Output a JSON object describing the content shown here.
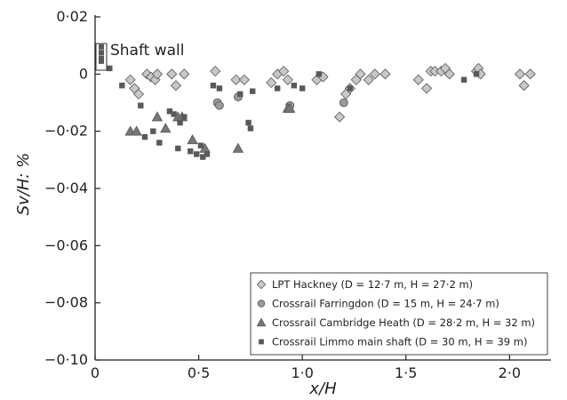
{
  "chart_data": {
    "type": "scatter",
    "xlabel": "x/H",
    "ylabel": "Sv/H: %",
    "xlim": [
      0,
      2.2
    ],
    "ylim": [
      -0.1,
      0.02
    ],
    "xticks": [
      "0",
      "0·5",
      "1·0",
      "1·5",
      "2·0"
    ],
    "yticks": [
      "0·02",
      "0",
      "−0·02",
      "−0·04",
      "−0·06",
      "−0·08",
      "−0·10"
    ],
    "annotation": "Shaft wall",
    "legend_position": "bottom-right",
    "series": [
      {
        "name": "LPT Hackney (D = 12·7 m, H = 27·2 m)",
        "marker": "diamond",
        "color": "#c8c8c8",
        "points": [
          [
            0.17,
            -0.002
          ],
          [
            0.19,
            -0.005
          ],
          [
            0.21,
            -0.007
          ],
          [
            0.25,
            0.0
          ],
          [
            0.27,
            -0.001
          ],
          [
            0.29,
            -0.002
          ],
          [
            0.3,
            0.0
          ],
          [
            0.37,
            0.0
          ],
          [
            0.39,
            -0.004
          ],
          [
            0.43,
            0.0
          ],
          [
            0.58,
            0.001
          ],
          [
            0.68,
            -0.002
          ],
          [
            0.72,
            -0.002
          ],
          [
            0.85,
            -0.003
          ],
          [
            0.88,
            0.0
          ],
          [
            0.91,
            0.001
          ],
          [
            0.93,
            -0.002
          ],
          [
            1.07,
            -0.002
          ],
          [
            1.1,
            -0.001
          ],
          [
            1.18,
            -0.015
          ],
          [
            1.21,
            -0.007
          ],
          [
            1.23,
            -0.005
          ],
          [
            1.26,
            -0.002
          ],
          [
            1.28,
            0.0
          ],
          [
            1.32,
            -0.002
          ],
          [
            1.35,
            0.0
          ],
          [
            1.4,
            0.0
          ],
          [
            1.56,
            -0.002
          ],
          [
            1.6,
            -0.005
          ],
          [
            1.62,
            0.001
          ],
          [
            1.64,
            0.001
          ],
          [
            1.67,
            0.001
          ],
          [
            1.69,
            0.002
          ],
          [
            1.71,
            0.0
          ],
          [
            1.84,
            0.001
          ],
          [
            1.85,
            0.002
          ],
          [
            1.86,
            0.0
          ],
          [
            2.05,
            0.0
          ],
          [
            2.07,
            -0.004
          ],
          [
            2.1,
            0.0
          ]
        ]
      },
      {
        "name": "Crossrail Farringdon (D = 15 m, H = 24·7 m)",
        "marker": "circle",
        "color": "#9a9a9a",
        "points": [
          [
            0.59,
            -0.01
          ],
          [
            0.6,
            -0.011
          ],
          [
            0.69,
            -0.008
          ],
          [
            0.94,
            -0.011
          ],
          [
            1.2,
            -0.01
          ]
        ]
      },
      {
        "name": "Crossrail Cambridge Heath (D = 28·2 m, H = 32 m)",
        "marker": "triangle",
        "color": "#777777",
        "points": [
          [
            0.17,
            -0.02
          ],
          [
            0.2,
            -0.02
          ],
          [
            0.3,
            -0.015
          ],
          [
            0.34,
            -0.019
          ],
          [
            0.4,
            -0.015
          ],
          [
            0.42,
            -0.015
          ],
          [
            0.47,
            -0.023
          ],
          [
            0.53,
            -0.026
          ],
          [
            0.69,
            -0.026
          ],
          [
            0.93,
            -0.012
          ],
          [
            0.94,
            -0.012
          ]
        ]
      },
      {
        "name": "Crossrail Limmo main shaft (D = 30 m, H = 39 m)",
        "marker": "square",
        "color": "#595959",
        "points": [
          [
            0.07,
            0.002
          ],
          [
            0.13,
            -0.004
          ],
          [
            0.22,
            -0.011
          ],
          [
            0.24,
            -0.022
          ],
          [
            0.28,
            -0.02
          ],
          [
            0.31,
            -0.024
          ],
          [
            0.36,
            -0.013
          ],
          [
            0.38,
            -0.014
          ],
          [
            0.4,
            -0.026
          ],
          [
            0.41,
            -0.017
          ],
          [
            0.43,
            -0.015
          ],
          [
            0.46,
            -0.027
          ],
          [
            0.49,
            -0.028
          ],
          [
            0.51,
            -0.025
          ],
          [
            0.52,
            -0.029
          ],
          [
            0.54,
            -0.028
          ],
          [
            0.57,
            -0.004
          ],
          [
            0.6,
            -0.005
          ],
          [
            0.7,
            -0.007
          ],
          [
            0.74,
            -0.017
          ],
          [
            0.75,
            -0.019
          ],
          [
            0.76,
            -0.006
          ],
          [
            0.88,
            -0.005
          ],
          [
            0.96,
            -0.004
          ],
          [
            1.0,
            -0.005
          ],
          [
            1.08,
            0.0
          ],
          [
            1.23,
            -0.005
          ],
          [
            1.78,
            -0.002
          ],
          [
            1.84,
            0.0
          ]
        ]
      }
    ]
  }
}
